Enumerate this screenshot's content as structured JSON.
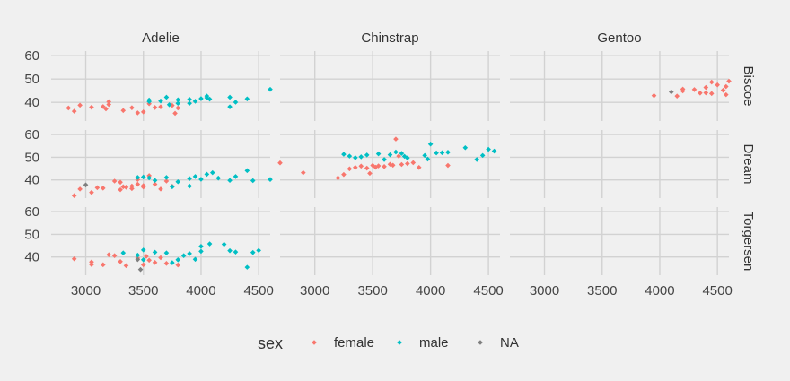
{
  "chart_data": {
    "type": "scatter",
    "title": "",
    "xlabel": "",
    "ylabel": "",
    "facet_columns": [
      "Adelie",
      "Chinstrap",
      "Gentoo"
    ],
    "facet_rows": [
      "Biscoe",
      "Dream",
      "Torgersen"
    ],
    "x_ticks": [
      "3000",
      "3500",
      "4000",
      "4500"
    ],
    "y_ticks": [
      "40",
      "50",
      "60"
    ],
    "xlim": [
      2700,
      4600
    ],
    "ylim": [
      32,
      62
    ],
    "grid": true,
    "legend_position": "bottom",
    "legend": {
      "title": "sex",
      "entries": [
        {
          "name": "female",
          "color": "#F8766D"
        },
        {
          "name": "male",
          "color": "#00BFC4"
        },
        {
          "name": "NA",
          "color": "#7F7F7F"
        }
      ]
    },
    "colors": {
      "female": "#F8766D",
      "male": "#00BFC4",
      "NA": "#7F7F7F"
    },
    "panels": [
      {
        "column": "Adelie",
        "row": "Biscoe",
        "points": [
          [
            2850,
            37.6,
            "female"
          ],
          [
            2900,
            36.2,
            "female"
          ],
          [
            2950,
            38.8,
            "female"
          ],
          [
            3050,
            37.9,
            "female"
          ],
          [
            3150,
            38.2,
            "female"
          ],
          [
            3175,
            37.2,
            "female"
          ],
          [
            3200,
            39.1,
            "female"
          ],
          [
            3200,
            40.3,
            "female"
          ],
          [
            3325,
            36.5,
            "female"
          ],
          [
            3400,
            37.7,
            "female"
          ],
          [
            3450,
            35.5,
            "female"
          ],
          [
            3500,
            35.9,
            "female"
          ],
          [
            3550,
            39.4,
            "female"
          ],
          [
            3600,
            37.8,
            "female"
          ],
          [
            3650,
            38.1,
            "female"
          ],
          [
            3750,
            38.7,
            "female"
          ],
          [
            3775,
            35.3,
            "female"
          ],
          [
            3800,
            37.6,
            "female"
          ],
          [
            3550,
            40.4,
            "male"
          ],
          [
            3550,
            41.0,
            "male"
          ],
          [
            3650,
            40.6,
            "male"
          ],
          [
            3700,
            42.2,
            "male"
          ],
          [
            3725,
            39.0,
            "male"
          ],
          [
            3800,
            39.6,
            "male"
          ],
          [
            3800,
            41.1,
            "male"
          ],
          [
            3900,
            39.6,
            "male"
          ],
          [
            3900,
            41.3,
            "male"
          ],
          [
            3950,
            40.5,
            "male"
          ],
          [
            4000,
            41.6,
            "male"
          ],
          [
            4050,
            42.7,
            "male"
          ],
          [
            4050,
            42.0,
            "male"
          ],
          [
            4075,
            41.4,
            "male"
          ],
          [
            4250,
            42.2,
            "male"
          ],
          [
            4250,
            38.1,
            "male"
          ],
          [
            4300,
            40.1,
            "male"
          ],
          [
            4400,
            41.5,
            "male"
          ],
          [
            4600,
            45.6,
            "male"
          ]
        ]
      },
      {
        "column": "Chinstrap",
        "row": "Biscoe",
        "points": []
      },
      {
        "column": "Gentoo",
        "row": "Biscoe",
        "points": [
          [
            3950,
            42.9,
            "female"
          ],
          [
            4100,
            44.5,
            "NA"
          ],
          [
            4150,
            42.7,
            "female"
          ],
          [
            4200,
            45.7,
            "female"
          ],
          [
            4200,
            44.9,
            "female"
          ],
          [
            4300,
            45.5,
            "female"
          ],
          [
            4350,
            44.0,
            "female"
          ],
          [
            4400,
            46.4,
            "female"
          ],
          [
            4400,
            44.1,
            "female"
          ],
          [
            4450,
            48.7,
            "female"
          ],
          [
            4450,
            43.8,
            "female"
          ],
          [
            4500,
            47.5,
            "female"
          ],
          [
            4550,
            45.2,
            "female"
          ],
          [
            4575,
            46.8,
            "female"
          ],
          [
            4575,
            43.3,
            "female"
          ],
          [
            4600,
            49.1,
            "female"
          ]
        ]
      },
      {
        "column": "Adelie",
        "row": "Dream",
        "points": [
          [
            2900,
            33.1,
            "female"
          ],
          [
            2950,
            36.0,
            "female"
          ],
          [
            3000,
            37.8,
            "NA"
          ],
          [
            3050,
            34.5,
            "female"
          ],
          [
            3100,
            36.6,
            "female"
          ],
          [
            3150,
            36.4,
            "female"
          ],
          [
            3250,
            39.5,
            "female"
          ],
          [
            3300,
            35.7,
            "female"
          ],
          [
            3300,
            39.0,
            "female"
          ],
          [
            3325,
            37.0,
            "female"
          ],
          [
            3350,
            36.8,
            "female"
          ],
          [
            3400,
            37.3,
            "female"
          ],
          [
            3400,
            36.2,
            "female"
          ],
          [
            3450,
            40.2,
            "female"
          ],
          [
            3450,
            38.1,
            "female"
          ],
          [
            3500,
            37.5,
            "female"
          ],
          [
            3500,
            36.9,
            "female"
          ],
          [
            3550,
            41.9,
            "female"
          ],
          [
            3600,
            38.1,
            "female"
          ],
          [
            3650,
            36.0,
            "female"
          ],
          [
            3700,
            39.5,
            "female"
          ],
          [
            3750,
            37.2,
            "female"
          ],
          [
            3450,
            41.1,
            "male"
          ],
          [
            3500,
            41.3,
            "male"
          ],
          [
            3550,
            40.9,
            "male"
          ],
          [
            3600,
            39.8,
            "male"
          ],
          [
            3700,
            41.1,
            "male"
          ],
          [
            3750,
            37.0,
            "male"
          ],
          [
            3800,
            39.2,
            "male"
          ],
          [
            3900,
            40.6,
            "male"
          ],
          [
            3900,
            37.3,
            "male"
          ],
          [
            3950,
            41.5,
            "male"
          ],
          [
            4000,
            40.3,
            "male"
          ],
          [
            4050,
            42.5,
            "male"
          ],
          [
            4100,
            43.2,
            "male"
          ],
          [
            4150,
            40.8,
            "male"
          ],
          [
            4250,
            39.8,
            "male"
          ],
          [
            4300,
            41.5,
            "male"
          ],
          [
            4400,
            44.1,
            "male"
          ],
          [
            4450,
            39.7,
            "male"
          ],
          [
            4600,
            40.2,
            "male"
          ]
        ]
      },
      {
        "column": "Chinstrap",
        "row": "Dream",
        "points": [
          [
            2700,
            47.5,
            "female"
          ],
          [
            2900,
            43.2,
            "female"
          ],
          [
            3200,
            40.9,
            "female"
          ],
          [
            3250,
            42.4,
            "female"
          ],
          [
            3300,
            44.9,
            "female"
          ],
          [
            3350,
            45.5,
            "female"
          ],
          [
            3400,
            46.1,
            "female"
          ],
          [
            3450,
            45.2,
            "female"
          ],
          [
            3475,
            42.9,
            "female"
          ],
          [
            3500,
            46.4,
            "female"
          ],
          [
            3525,
            45.6,
            "female"
          ],
          [
            3550,
            46.2,
            "female"
          ],
          [
            3600,
            45.9,
            "female"
          ],
          [
            3650,
            46.9,
            "female"
          ],
          [
            3675,
            46.5,
            "female"
          ],
          [
            3700,
            58.0,
            "female"
          ],
          [
            3725,
            50.5,
            "female"
          ],
          [
            3750,
            46.8,
            "female"
          ],
          [
            3800,
            47.2,
            "female"
          ],
          [
            3850,
            47.6,
            "female"
          ],
          [
            3900,
            45.5,
            "female"
          ],
          [
            4150,
            46.4,
            "female"
          ],
          [
            3250,
            51.3,
            "male"
          ],
          [
            3300,
            50.5,
            "male"
          ],
          [
            3350,
            49.8,
            "male"
          ],
          [
            3400,
            50.2,
            "male"
          ],
          [
            3450,
            51.0,
            "male"
          ],
          [
            3550,
            51.5,
            "male"
          ],
          [
            3600,
            49.0,
            "male"
          ],
          [
            3650,
            51.1,
            "male"
          ],
          [
            3700,
            52.3,
            "male"
          ],
          [
            3750,
            51.7,
            "male"
          ],
          [
            3775,
            50.4,
            "male"
          ],
          [
            3800,
            49.7,
            "male"
          ],
          [
            3950,
            50.8,
            "male"
          ],
          [
            3975,
            49.2,
            "male"
          ],
          [
            4000,
            55.8,
            "male"
          ],
          [
            4050,
            51.9,
            "male"
          ],
          [
            4100,
            52.0,
            "male"
          ],
          [
            4150,
            52.2,
            "male"
          ],
          [
            4300,
            54.2,
            "male"
          ],
          [
            4400,
            49.0,
            "male"
          ],
          [
            4450,
            50.8,
            "male"
          ],
          [
            4500,
            53.5,
            "male"
          ],
          [
            4550,
            52.7,
            "male"
          ]
        ]
      },
      {
        "column": "Gentoo",
        "row": "Dream",
        "points": []
      },
      {
        "column": "Adelie",
        "row": "Torgersen",
        "points": [
          [
            2900,
            39.2,
            "female"
          ],
          [
            3050,
            36.7,
            "female"
          ],
          [
            3050,
            37.8,
            "female"
          ],
          [
            3150,
            36.6,
            "female"
          ],
          [
            3200,
            41.0,
            "female"
          ],
          [
            3250,
            40.6,
            "female"
          ],
          [
            3300,
            38.0,
            "female"
          ],
          [
            3350,
            36.2,
            "female"
          ],
          [
            3450,
            39.5,
            "female"
          ],
          [
            3500,
            36.6,
            "female"
          ],
          [
            3525,
            40.3,
            "female"
          ],
          [
            3550,
            38.6,
            "female"
          ],
          [
            3600,
            37.6,
            "female"
          ],
          [
            3650,
            39.7,
            "female"
          ],
          [
            3700,
            37.2,
            "female"
          ],
          [
            3800,
            36.5,
            "female"
          ],
          [
            3475,
            34.5,
            "NA"
          ],
          [
            3450,
            38.9,
            "NA"
          ],
          [
            3325,
            41.8,
            "male"
          ],
          [
            3450,
            40.8,
            "male"
          ],
          [
            3500,
            43.1,
            "male"
          ],
          [
            3500,
            38.8,
            "male"
          ],
          [
            3600,
            42.1,
            "male"
          ],
          [
            3700,
            41.8,
            "male"
          ],
          [
            3750,
            37.5,
            "male"
          ],
          [
            3800,
            38.8,
            "male"
          ],
          [
            3850,
            40.6,
            "male"
          ],
          [
            3900,
            41.5,
            "male"
          ],
          [
            3950,
            39.0,
            "male"
          ],
          [
            4000,
            42.5,
            "male"
          ],
          [
            4000,
            44.7,
            "male"
          ],
          [
            4075,
            45.8,
            "male"
          ],
          [
            4200,
            45.6,
            "male"
          ],
          [
            4250,
            42.8,
            "male"
          ],
          [
            4300,
            42.2,
            "male"
          ],
          [
            4400,
            35.5,
            "male"
          ],
          [
            4450,
            42.0,
            "male"
          ],
          [
            4500,
            42.9,
            "male"
          ]
        ]
      },
      {
        "column": "Chinstrap",
        "row": "Torgersen",
        "points": []
      },
      {
        "column": "Gentoo",
        "row": "Torgersen",
        "points": []
      }
    ]
  }
}
